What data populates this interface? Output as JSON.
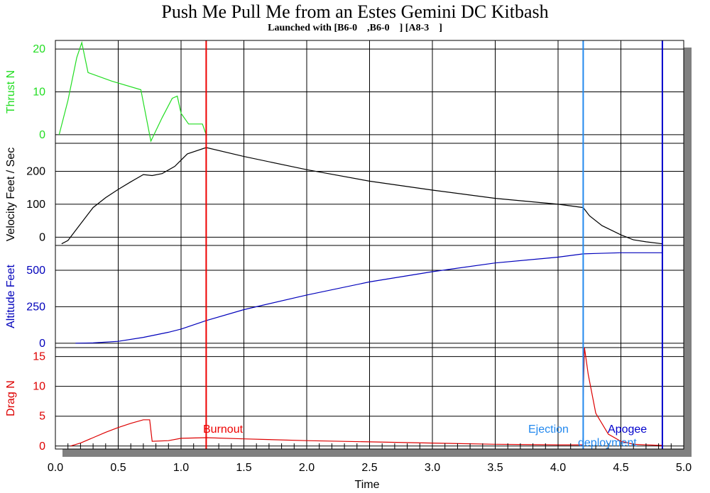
{
  "chart_data": {
    "type": "line",
    "title": "Push Me Pull Me from an Estes Gemini DC Kitbash",
    "subtitle": "Launched with [B6-0    ,B6-0    ] [A8-3    ]",
    "xlabel": "Time",
    "xlim": [
      0,
      5.0
    ],
    "xticks": [
      "0.0",
      "0.5",
      "1.0",
      "1.5",
      "2.0",
      "2.5",
      "3.0",
      "3.5",
      "4.0",
      "4.5",
      "5.0"
    ],
    "grid": true,
    "panels": [
      {
        "name": "Thrust N",
        "color": "#22dd22",
        "ylim": [
          -2,
          22
        ],
        "yticks": [
          0,
          10,
          20
        ],
        "points": [
          [
            0.03,
            0
          ],
          [
            0.1,
            8
          ],
          [
            0.17,
            18
          ],
          [
            0.21,
            21.5
          ],
          [
            0.26,
            14.5
          ],
          [
            0.45,
            12.5
          ],
          [
            0.68,
            10.5
          ],
          [
            0.76,
            -1.5
          ],
          [
            0.85,
            4
          ],
          [
            0.93,
            8.5
          ],
          [
            0.97,
            9
          ],
          [
            1.0,
            5
          ],
          [
            1.06,
            2.5
          ],
          [
            1.17,
            2.5
          ],
          [
            1.2,
            0
          ]
        ]
      },
      {
        "name": "Velocity Feet / Sec",
        "color": "#000000",
        "ylim": [
          -25,
          285
        ],
        "yticks": [
          0,
          100,
          200
        ],
        "points": [
          [
            0.05,
            -20
          ],
          [
            0.1,
            -10
          ],
          [
            0.2,
            40
          ],
          [
            0.3,
            90
          ],
          [
            0.4,
            120
          ],
          [
            0.5,
            145
          ],
          [
            0.6,
            168
          ],
          [
            0.7,
            190
          ],
          [
            0.77,
            187
          ],
          [
            0.85,
            193
          ],
          [
            0.95,
            215
          ],
          [
            1.05,
            253
          ],
          [
            1.2,
            272
          ],
          [
            1.5,
            245
          ],
          [
            2.0,
            205
          ],
          [
            2.5,
            170
          ],
          [
            3.0,
            143
          ],
          [
            3.5,
            118
          ],
          [
            4.0,
            100
          ],
          [
            4.2,
            90
          ],
          [
            4.25,
            65
          ],
          [
            4.35,
            35
          ],
          [
            4.5,
            7
          ],
          [
            4.6,
            -8
          ],
          [
            4.7,
            -14
          ],
          [
            4.83,
            -20
          ]
        ]
      },
      {
        "name": "Altitude Feet",
        "color": "#0000bb",
        "ylim": [
          -30,
          670
        ],
        "yticks": [
          0,
          250,
          500
        ],
        "points": [
          [
            0.16,
            0
          ],
          [
            0.3,
            2
          ],
          [
            0.5,
            13
          ],
          [
            0.7,
            40
          ],
          [
            0.9,
            75
          ],
          [
            1.0,
            97
          ],
          [
            1.2,
            155
          ],
          [
            1.5,
            230
          ],
          [
            2.0,
            330
          ],
          [
            2.5,
            420
          ],
          [
            3.0,
            490
          ],
          [
            3.5,
            550
          ],
          [
            4.0,
            590
          ],
          [
            4.2,
            612
          ],
          [
            4.3,
            615
          ],
          [
            4.5,
            620
          ],
          [
            4.83,
            620
          ]
        ]
      },
      {
        "name": "Drag N",
        "color": "#dd0000",
        "ylim": [
          -0.5,
          16.5
        ],
        "yticks": [
          0,
          5,
          10,
          15
        ],
        "points": [
          [
            0.12,
            0
          ],
          [
            0.2,
            0.5
          ],
          [
            0.3,
            1.4
          ],
          [
            0.4,
            2.3
          ],
          [
            0.5,
            3.1
          ],
          [
            0.6,
            3.8
          ],
          [
            0.7,
            4.4
          ],
          [
            0.75,
            4.4
          ],
          [
            0.77,
            0.8
          ],
          [
            0.9,
            0.9
          ],
          [
            1.0,
            1.3
          ],
          [
            1.2,
            1.4
          ],
          [
            1.5,
            1.2
          ],
          [
            2.0,
            0.9
          ],
          [
            2.5,
            0.7
          ],
          [
            3.0,
            0.5
          ],
          [
            3.5,
            0.3
          ],
          [
            4.0,
            0.2
          ],
          [
            4.2,
            0.2
          ],
          [
            4.2,
            8
          ],
          [
            4.21,
            16.5
          ],
          [
            4.24,
            12
          ],
          [
            4.3,
            5.5
          ],
          [
            4.4,
            2
          ],
          [
            4.5,
            0.8
          ],
          [
            4.6,
            0.3
          ],
          [
            4.83,
            0.1
          ]
        ]
      }
    ],
    "events": [
      {
        "label": "Burnout",
        "x": 1.2,
        "color": "#ee0000"
      },
      {
        "label": "Ejection",
        "x": 4.2,
        "color": "#2288ee"
      },
      {
        "label": "Apogee",
        "x": 4.83,
        "color": "#0000cc"
      },
      {
        "label": "deployment",
        "x": 4.2,
        "color": "#2288ee"
      }
    ]
  }
}
